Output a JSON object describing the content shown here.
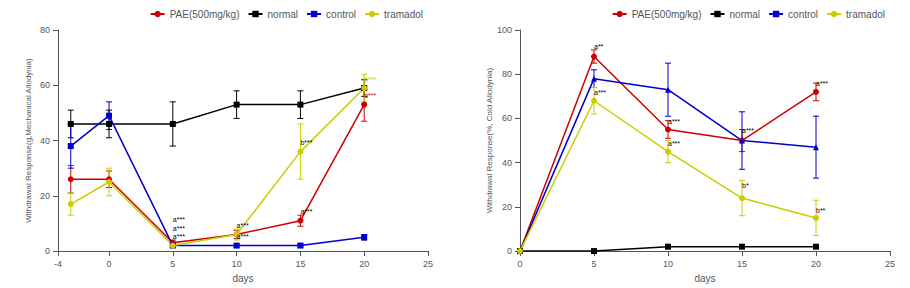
{
  "chart_data": [
    {
      "type": "line",
      "xlabel": "days",
      "ylabel": "Withdrawal Response(g,Mechanical Allodynia)",
      "xlim": [
        -4,
        25
      ],
      "ylim": [
        0,
        80
      ],
      "xticks": [
        -4,
        0,
        5,
        10,
        15,
        20,
        25
      ],
      "yticks": [
        0,
        20,
        40,
        60,
        80
      ],
      "grid": false,
      "legend": "upper right",
      "x": [
        -3,
        0,
        5,
        10,
        15,
        20
      ],
      "series": [
        {
          "name": "PAE(500mg/kg)",
          "color": "#cc0000",
          "marker": "circle",
          "values": [
            26,
            26,
            3,
            6,
            11,
            53
          ],
          "yerr": [
            5,
            3,
            1,
            1.5,
            2,
            6
          ]
        },
        {
          "name": "normal",
          "color": "#000000",
          "marker": "square",
          "values": [
            46,
            46,
            46,
            53,
            53,
            59
          ],
          "yerr": [
            5,
            5,
            8,
            5,
            5,
            3
          ]
        },
        {
          "name": "control",
          "color": "#0000cc",
          "marker": "square",
          "values": [
            38,
            49,
            2,
            2,
            2,
            5
          ],
          "yerr": [
            8,
            5,
            0.5,
            0.5,
            0.5,
            1
          ]
        },
        {
          "name": "tramadol",
          "color": "#cccc00",
          "marker": "circle",
          "values": [
            17,
            25,
            2,
            6,
            36,
            59
          ],
          "yerr": [
            4,
            5,
            0.5,
            2,
            10,
            5
          ]
        }
      ],
      "annotations": [
        {
          "text": "a***",
          "x": 5,
          "y": 4,
          "color": "#000000"
        },
        {
          "text": "a***",
          "x": 5,
          "y": 7,
          "color": "#000000"
        },
        {
          "text": "a***",
          "x": 5,
          "y": 10,
          "color": "#000000"
        },
        {
          "text": "a***",
          "x": 10,
          "y": 8,
          "color": "#000000"
        },
        {
          "text": "a***",
          "x": 10,
          "y": 4,
          "color": "#000000"
        },
        {
          "text": "a***",
          "x": 15,
          "y": 13,
          "color": "#000000"
        },
        {
          "text": "b***",
          "x": 15,
          "y": 38,
          "color": "#000000"
        },
        {
          "text": "b***",
          "x": 20,
          "y": 55,
          "color": "#cc0000"
        },
        {
          "text": "b***",
          "x": 20,
          "y": 61,
          "color": "#cccc00"
        }
      ]
    },
    {
      "type": "line",
      "xlabel": "days",
      "ylabel": "Withdrawal Response(%, Cold Allodynia)",
      "xlim": [
        0,
        25
      ],
      "ylim": [
        0,
        100
      ],
      "xticks": [
        0,
        5,
        10,
        15,
        20,
        25
      ],
      "yticks": [
        0,
        20,
        40,
        60,
        80,
        100
      ],
      "grid": false,
      "legend": "upper right",
      "x": [
        0,
        5,
        10,
        15,
        20
      ],
      "series": [
        {
          "name": "PAE(500mg/kg)",
          "color": "#cc0000",
          "marker": "circle",
          "values": [
            0,
            88,
            55,
            50,
            72
          ],
          "yerr": [
            0,
            3,
            4,
            5,
            4
          ]
        },
        {
          "name": "normal",
          "color": "#000000",
          "marker": "square",
          "values": [
            0,
            0,
            2,
            2,
            2
          ],
          "yerr": [
            0,
            0.5,
            0.5,
            0.5,
            0.5
          ]
        },
        {
          "name": "control",
          "color": "#0000cc",
          "marker": "triangle",
          "values": [
            0,
            78,
            73,
            50,
            47
          ],
          "yerr": [
            0,
            4,
            12,
            13,
            14
          ]
        },
        {
          "name": "tramadol",
          "color": "#cccc00",
          "marker": "circle",
          "values": [
            0,
            68,
            45,
            24,
            15
          ],
          "yerr": [
            0,
            6,
            5,
            8,
            8
          ]
        }
      ],
      "annotations": [
        {
          "text": "a**",
          "x": 5,
          "y": 91,
          "color": "#000000"
        },
        {
          "text": "a***",
          "x": 5,
          "y": 70,
          "color": "#000000"
        },
        {
          "text": "a***",
          "x": 10,
          "y": 57,
          "color": "#000000"
        },
        {
          "text": "a***",
          "x": 10,
          "y": 47,
          "color": "#000000"
        },
        {
          "text": "a***",
          "x": 15,
          "y": 53,
          "color": "#000000"
        },
        {
          "text": "b*",
          "x": 15,
          "y": 28,
          "color": "#000000"
        },
        {
          "text": "a***",
          "x": 20,
          "y": 74,
          "color": "#000000"
        },
        {
          "text": "b**",
          "x": 20,
          "y": 17,
          "color": "#000000"
        }
      ]
    }
  ]
}
